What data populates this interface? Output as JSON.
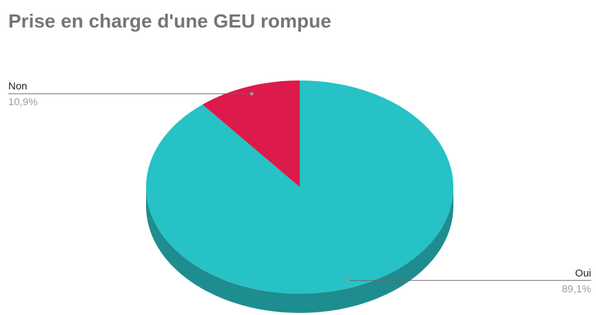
{
  "chart_data": {
    "type": "pie",
    "title": "Prise en charge d'une GEU rompue",
    "categories": [
      "Oui",
      "Non"
    ],
    "values": [
      89.1,
      10.9
    ],
    "value_labels": [
      "89,1%",
      "10,9%"
    ],
    "colors": [
      "#26c2c6",
      "#dc1a4b"
    ],
    "side_colors": [
      "#1e8d8f",
      "#a5143a"
    ],
    "three_d": true
  }
}
